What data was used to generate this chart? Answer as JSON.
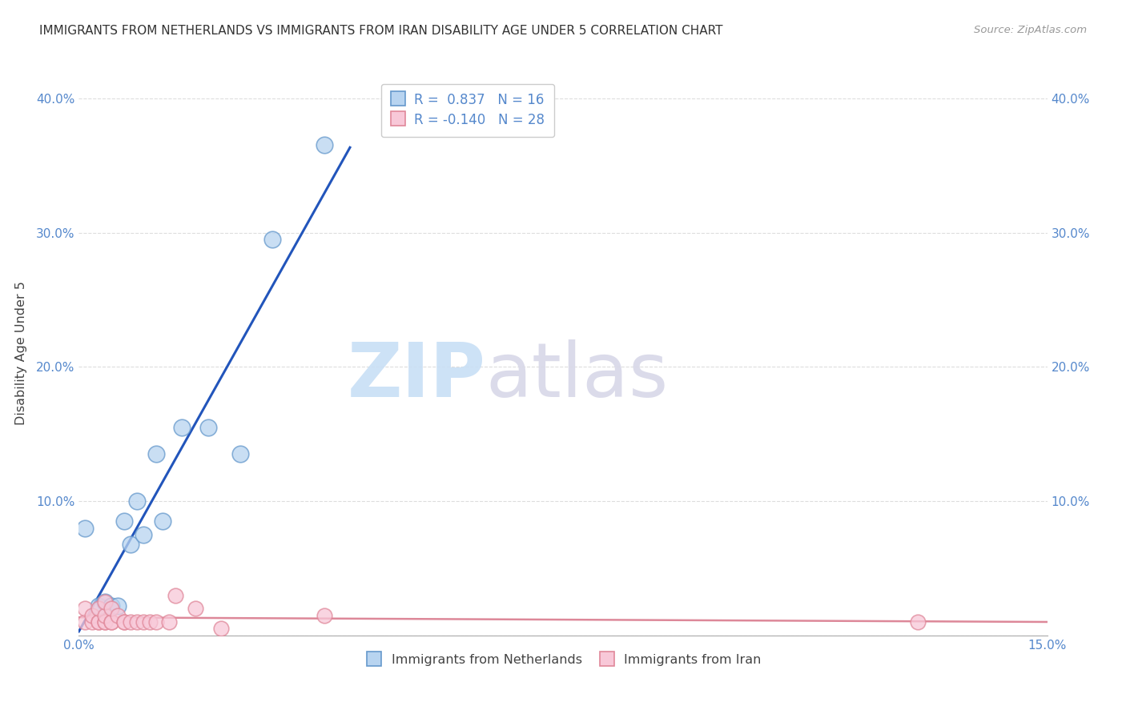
{
  "title": "IMMIGRANTS FROM NETHERLANDS VS IMMIGRANTS FROM IRAN DISABILITY AGE UNDER 5 CORRELATION CHART",
  "source": "Source: ZipAtlas.com",
  "ylabel": "Disability Age Under 5",
  "watermark_part1": "ZIP",
  "watermark_part2": "atlas",
  "xmin": 0.0,
  "xmax": 0.15,
  "ymin": 0.0,
  "ymax": 0.42,
  "xticks": [
    0.0,
    0.05,
    0.1,
    0.15
  ],
  "xtick_labels": [
    "0.0%",
    "",
    "",
    "15.0%"
  ],
  "yticks_left": [
    0.0,
    0.1,
    0.2,
    0.3,
    0.4
  ],
  "ytick_labels_left": [
    "",
    "10.0%",
    "20.0%",
    "30.0%",
    "40.0%"
  ],
  "ytick_labels_right": [
    "",
    "10.0%",
    "20.0%",
    "30.0%",
    "40.0%"
  ],
  "netherlands_color": "#b8d4f0",
  "netherlands_edge_color": "#6699cc",
  "iran_color": "#f8c8d8",
  "iran_edge_color": "#e0889a",
  "netherlands_R": 0.837,
  "netherlands_N": 16,
  "iran_R": -0.14,
  "iran_N": 28,
  "netherlands_trendline_color": "#2255bb",
  "iran_trendline_color": "#dd8899",
  "netherlands_points_x": [
    0.001,
    0.003,
    0.004,
    0.005,
    0.006,
    0.007,
    0.008,
    0.009,
    0.01,
    0.012,
    0.013,
    0.016,
    0.02,
    0.025,
    0.03,
    0.038
  ],
  "netherlands_points_y": [
    0.08,
    0.022,
    0.025,
    0.022,
    0.022,
    0.085,
    0.068,
    0.1,
    0.075,
    0.135,
    0.085,
    0.155,
    0.155,
    0.135,
    0.295,
    0.365
  ],
  "iran_points_x": [
    0.001,
    0.001,
    0.002,
    0.002,
    0.003,
    0.003,
    0.003,
    0.004,
    0.004,
    0.004,
    0.004,
    0.005,
    0.005,
    0.005,
    0.006,
    0.007,
    0.007,
    0.008,
    0.009,
    0.01,
    0.011,
    0.012,
    0.014,
    0.015,
    0.018,
    0.022,
    0.038,
    0.13
  ],
  "iran_points_y": [
    0.01,
    0.02,
    0.01,
    0.015,
    0.01,
    0.01,
    0.02,
    0.01,
    0.01,
    0.015,
    0.025,
    0.01,
    0.01,
    0.02,
    0.015,
    0.01,
    0.01,
    0.01,
    0.01,
    0.01,
    0.01,
    0.01,
    0.01,
    0.03,
    0.02,
    0.005,
    0.015,
    0.01
  ],
  "background_color": "#ffffff",
  "grid_color": "#dddddd",
  "tick_color": "#5588cc",
  "legend_top_labels": [
    "R =  0.837   N = 16",
    "R = -0.140   N = 28"
  ],
  "legend_bottom_labels": [
    "Immigrants from Netherlands",
    "Immigrants from Iran"
  ]
}
